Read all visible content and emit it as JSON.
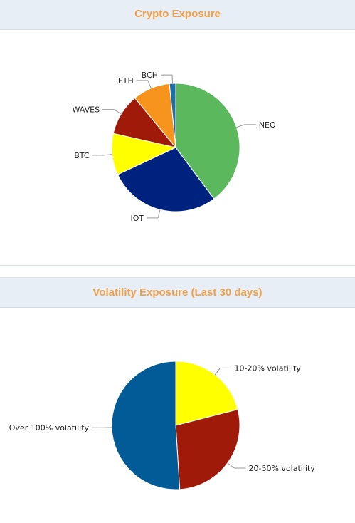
{
  "chart_data": [
    {
      "type": "pie",
      "title": "Crypto Exposure",
      "categories": [
        "NEO",
        "IOT",
        "BTC",
        "WAVES",
        "ETH",
        "BCH"
      ],
      "values": [
        38,
        27,
        10,
        10,
        9,
        1.5
      ],
      "colors": [
        "#5cb85c",
        "#00227f",
        "#ffff00",
        "#a01a0a",
        "#f7941d",
        "#1a6fa8"
      ]
    },
    {
      "type": "pie",
      "title": "Volatility Exposure (Last 30 days)",
      "categories": [
        "10-20% volatility",
        "20-50% volatility",
        "Over 100% volatility"
      ],
      "values": [
        21,
        28,
        51
      ],
      "colors": [
        "#ffff00",
        "#a01a0a",
        "#005b96"
      ]
    }
  ]
}
